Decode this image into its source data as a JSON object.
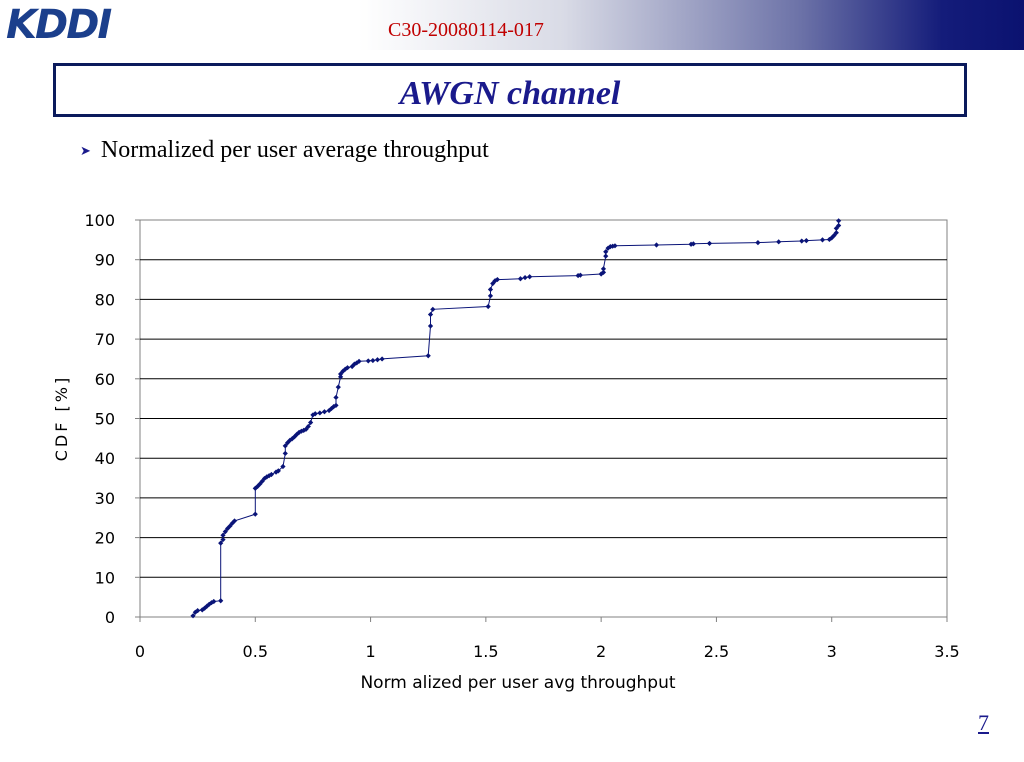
{
  "header": {
    "logo_text": "KDDI",
    "doc_id": "C30-20080114-017"
  },
  "slide": {
    "title": "AWGN channel",
    "bullet": "Normalized per user average throughput",
    "page_number": "7"
  },
  "colors": {
    "title": "#1a1a8c",
    "doc_id": "#c00000",
    "series": "#0a1478",
    "logo": "#1b3f8c"
  },
  "chart_data": {
    "type": "line",
    "xlabel": "Norm alized per user avg throughput",
    "ylabel": "CDF [%]",
    "xlim": [
      0,
      3.5
    ],
    "ylim": [
      0,
      100
    ],
    "xticks": [
      "0",
      "0.5",
      "1",
      "1.5",
      "2",
      "2.5",
      "3",
      "3.5"
    ],
    "yticks": [
      "0",
      "10",
      "20",
      "30",
      "40",
      "50",
      "60",
      "70",
      "80",
      "90",
      "100"
    ],
    "grid": "horizontal",
    "legend": "none",
    "marker": "diamond",
    "series": [
      {
        "x": [
          0.23,
          0.24,
          0.25,
          0.27,
          0.28,
          0.29,
          0.3,
          0.31,
          0.32,
          0.35,
          0.35,
          0.36,
          0.36,
          0.37,
          0.38,
          0.39,
          0.4,
          0.41,
          0.5,
          0.5,
          0.51,
          0.52,
          0.53,
          0.54,
          0.55,
          0.56,
          0.57,
          0.59,
          0.6,
          0.62,
          0.63,
          0.63,
          0.64,
          0.65,
          0.66,
          0.67,
          0.68,
          0.69,
          0.7,
          0.71,
          0.72,
          0.73,
          0.74,
          0.75,
          0.76,
          0.78,
          0.8,
          0.82,
          0.83,
          0.84,
          0.85,
          0.85,
          0.86,
          0.87,
          0.87,
          0.88,
          0.89,
          0.9,
          0.92,
          0.93,
          0.94,
          0.95,
          0.99,
          1.01,
          1.03,
          1.05,
          1.25,
          1.26,
          1.26,
          1.27,
          1.51,
          1.52,
          1.52,
          1.53,
          1.54,
          1.55,
          1.65,
          1.67,
          1.69,
          1.9,
          1.91,
          2.0,
          2.01,
          2.01,
          2.02,
          2.02,
          2.03,
          2.04,
          2.05,
          2.06,
          2.24,
          2.39,
          2.4,
          2.47,
          2.68,
          2.77,
          2.87,
          2.89,
          2.96,
          2.99,
          3.0,
          3.01,
          3.02,
          3.02,
          3.03,
          3.03
        ],
        "y": [
          0.3,
          1.2,
          1.6,
          1.8,
          2.2,
          2.7,
          3.2,
          3.6,
          3.9,
          4.1,
          18.6,
          19.5,
          20.6,
          21.5,
          22.3,
          22.9,
          23.6,
          24.2,
          25.9,
          32.4,
          32.9,
          33.5,
          34.2,
          34.9,
          35.3,
          35.6,
          35.9,
          36.5,
          36.8,
          37.9,
          41.2,
          43.1,
          43.9,
          44.5,
          44.9,
          45.4,
          46.0,
          46.5,
          46.8,
          47.0,
          47.3,
          48.0,
          49.0,
          50.9,
          51.2,
          51.4,
          51.7,
          52.0,
          52.5,
          53.0,
          53.3,
          55.3,
          57.9,
          60.5,
          61.2,
          61.9,
          62.4,
          62.8,
          63.1,
          63.7,
          64.0,
          64.4,
          64.5,
          64.6,
          64.8,
          65.0,
          65.8,
          73.3,
          76.2,
          77.5,
          78.2,
          80.9,
          82.5,
          84.0,
          84.7,
          85.0,
          85.2,
          85.5,
          85.7,
          86.0,
          86.1,
          86.4,
          86.8,
          87.7,
          90.9,
          92.0,
          92.9,
          93.3,
          93.4,
          93.5,
          93.7,
          93.9,
          94.0,
          94.1,
          94.3,
          94.5,
          94.7,
          94.8,
          95.0,
          95.1,
          95.5,
          96.1,
          96.8,
          97.9,
          98.6,
          99.8
        ]
      }
    ]
  }
}
